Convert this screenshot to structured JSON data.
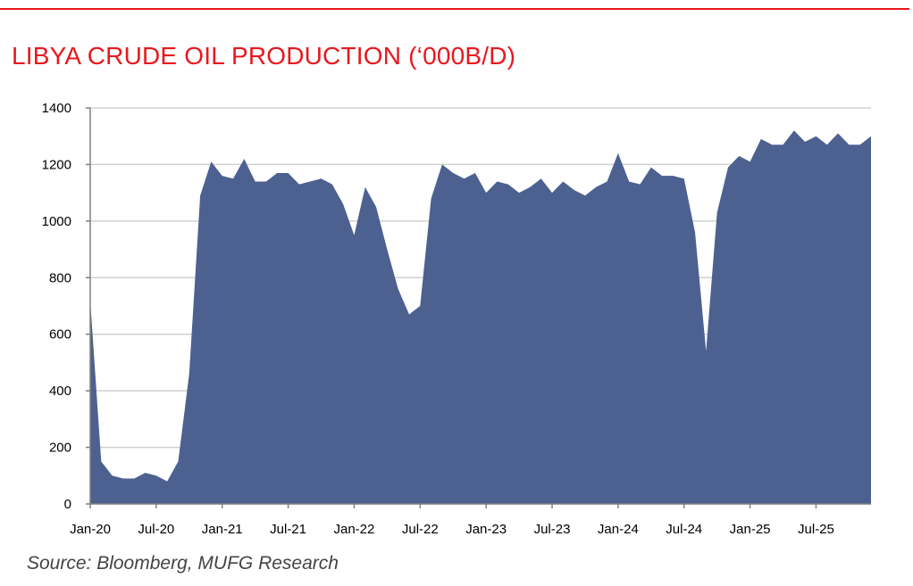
{
  "colors": {
    "accent_red": "#e8181e",
    "area_fill": "#4c6190",
    "grid": "#d0d0d0",
    "axis": "#7f7f7f"
  },
  "source": "Source: Bloomberg, MUFG Research",
  "chart_data": {
    "type": "area",
    "title": "LIBYA CRUDE OIL PRODUCTION (‘000B/D)",
    "xlabel": "",
    "ylabel": "",
    "ylim": [
      0,
      1400
    ],
    "yticks": [
      0,
      200,
      400,
      600,
      800,
      1000,
      1200,
      1400
    ],
    "grid": true,
    "legend": "none",
    "x_tick_labels": [
      "Jan-20",
      "Jul-20",
      "Jan-21",
      "Jul-21",
      "Jan-22",
      "Jul-22",
      "Jan-23",
      "Jul-23",
      "Jan-24",
      "Jul-24",
      "Jan-25",
      "Jul-25"
    ],
    "x_start": "Jan-20",
    "x_end": "Dec-25",
    "series": [
      {
        "values": [
          720,
          150,
          100,
          90,
          90,
          110,
          100,
          80,
          150,
          460,
          1090,
          1210,
          1160,
          1150,
          1220,
          1140,
          1140,
          1170,
          1170,
          1130,
          1140,
          1150,
          1130,
          1060,
          950,
          1120,
          1050,
          900,
          760,
          670,
          700,
          1080,
          1200,
          1170,
          1150,
          1170,
          1100,
          1140,
          1130,
          1100,
          1120,
          1150,
          1100,
          1140,
          1110,
          1090,
          1120,
          1140,
          1240,
          1140,
          1130,
          1190,
          1160,
          1160,
          1150,
          960,
          540,
          1030,
          1190,
          1230,
          1210,
          1290,
          1270,
          1270,
          1320,
          1280,
          1300,
          1270,
          1310,
          1270,
          1270,
          1300
        ]
      }
    ]
  }
}
